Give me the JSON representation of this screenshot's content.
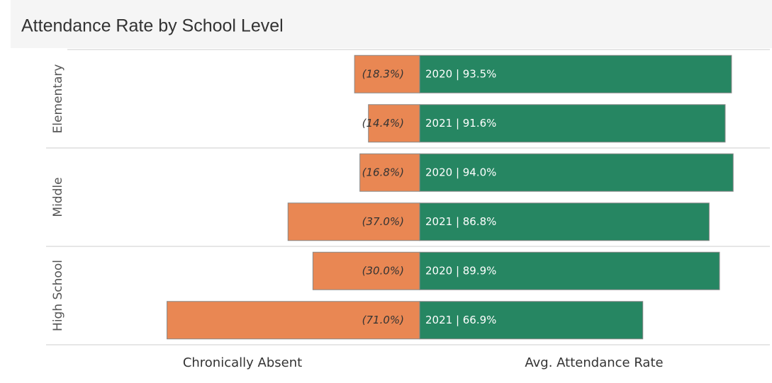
{
  "chart_data": {
    "type": "diverging_bar",
    "title": "Attendance Rate by School Level",
    "groups": [
      "Elementary",
      "Middle",
      "High School"
    ],
    "series": [
      {
        "name": "Chronically Absent",
        "color": "#e98753",
        "xlim": [
          0,
          98
        ],
        "values": [
          18.3,
          14.4,
          16.8,
          37.0,
          30.0,
          71.0
        ],
        "value_labels": [
          "(18.3%)",
          "(14.4%)",
          "(16.8%)",
          "(37.0%)",
          "(30.0%)",
          "(71.0%)"
        ]
      },
      {
        "name": "Avg. Attendance Rate",
        "color": "#268662",
        "xlim": [
          0,
          105
        ],
        "values": [
          93.5,
          91.6,
          94.0,
          86.8,
          89.9,
          66.9
        ],
        "value_labels": [
          "2020 | 93.5%",
          "2021 | 91.6%",
          "2020 | 94.0%",
          "2021 | 86.8%",
          "2020 | 89.9%",
          "2021 | 66.9%"
        ]
      }
    ]
  }
}
